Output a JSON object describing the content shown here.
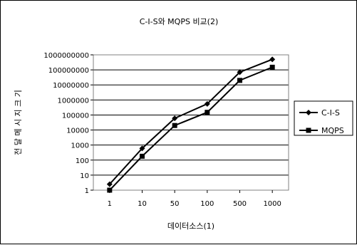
{
  "chart_data": {
    "type": "line",
    "title": "C-I-S와 MQPS 비교(2)",
    "xlabel": "데이터소스(1)",
    "ylabel": "전 달 메 시 지 크 기",
    "y_scale": "log",
    "ylim": [
      1,
      1000000000
    ],
    "y_ticks": [
      "1",
      "10",
      "100",
      "1000",
      "10000",
      "100000",
      "1000000",
      "10000000",
      "100000000",
      "1000000000"
    ],
    "categories": [
      "1",
      "10",
      "50",
      "100",
      "500",
      "1000"
    ],
    "series": [
      {
        "name": "C-I-S",
        "marker": "diamond",
        "values": [
          2.5,
          600,
          60000,
          550000,
          70000000,
          500000000
        ]
      },
      {
        "name": "MQPS",
        "marker": "square",
        "values": [
          1,
          180,
          20000,
          150000,
          20000000,
          150000000
        ]
      }
    ],
    "grid": true,
    "legend_position": "right",
    "line_color": "#000000",
    "plot_border_color": "#808080"
  }
}
